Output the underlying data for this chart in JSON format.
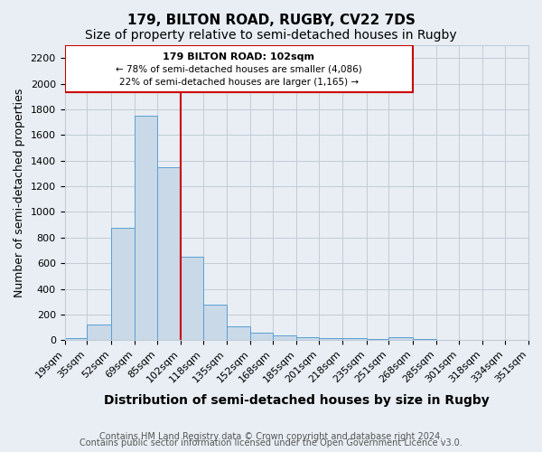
{
  "title": "179, BILTON ROAD, RUGBY, CV22 7DS",
  "subtitle": "Size of property relative to semi-detached houses in Rugby",
  "xlabel": "Distribution of semi-detached houses by size in Rugby",
  "ylabel": "Number of semi-detached properties",
  "footnote1": "Contains HM Land Registry data © Crown copyright and database right 2024.",
  "footnote2": "Contains public sector information licensed under the Open Government Licence v3.0.",
  "bin_labels": [
    "19sqm",
    "35sqm",
    "52sqm",
    "69sqm",
    "85sqm",
    "102sqm",
    "118sqm",
    "135sqm",
    "152sqm",
    "168sqm",
    "185sqm",
    "201sqm",
    "218sqm",
    "235sqm",
    "251sqm",
    "268sqm",
    "285sqm",
    "301sqm",
    "318sqm",
    "334sqm",
    "351sqm"
  ],
  "bin_edges": [
    19,
    35,
    52,
    69,
    85,
    102,
    118,
    135,
    152,
    168,
    185,
    201,
    218,
    235,
    251,
    268,
    285,
    301,
    318,
    334,
    351
  ],
  "bar_heights": [
    15,
    125,
    875,
    1750,
    1350,
    650,
    275,
    105,
    55,
    35,
    20,
    15,
    15,
    10,
    20,
    10,
    0,
    0,
    0,
    0
  ],
  "bar_color": "#c9d9e8",
  "bar_edge_color": "#5a9fd4",
  "vline_x": 102,
  "vline_color": "#cc0000",
  "annotation_title": "179 BILTON ROAD: 102sqm",
  "annotation_line1": "← 78% of semi-detached houses are smaller (4,086)",
  "annotation_line2": "22% of semi-detached houses are larger (1,165) →",
  "annotation_box_color": "#ffffff",
  "annotation_box_edge_color": "#cc0000",
  "ylim": [
    0,
    2300
  ],
  "yticks": [
    0,
    200,
    400,
    600,
    800,
    1000,
    1200,
    1400,
    1600,
    1800,
    2000,
    2200
  ],
  "grid_color": "#c0ccd8",
  "background_color": "#e8eef4",
  "title_fontsize": 11,
  "subtitle_fontsize": 10,
  "axis_label_fontsize": 9,
  "tick_fontsize": 8,
  "footnote_fontsize": 7
}
